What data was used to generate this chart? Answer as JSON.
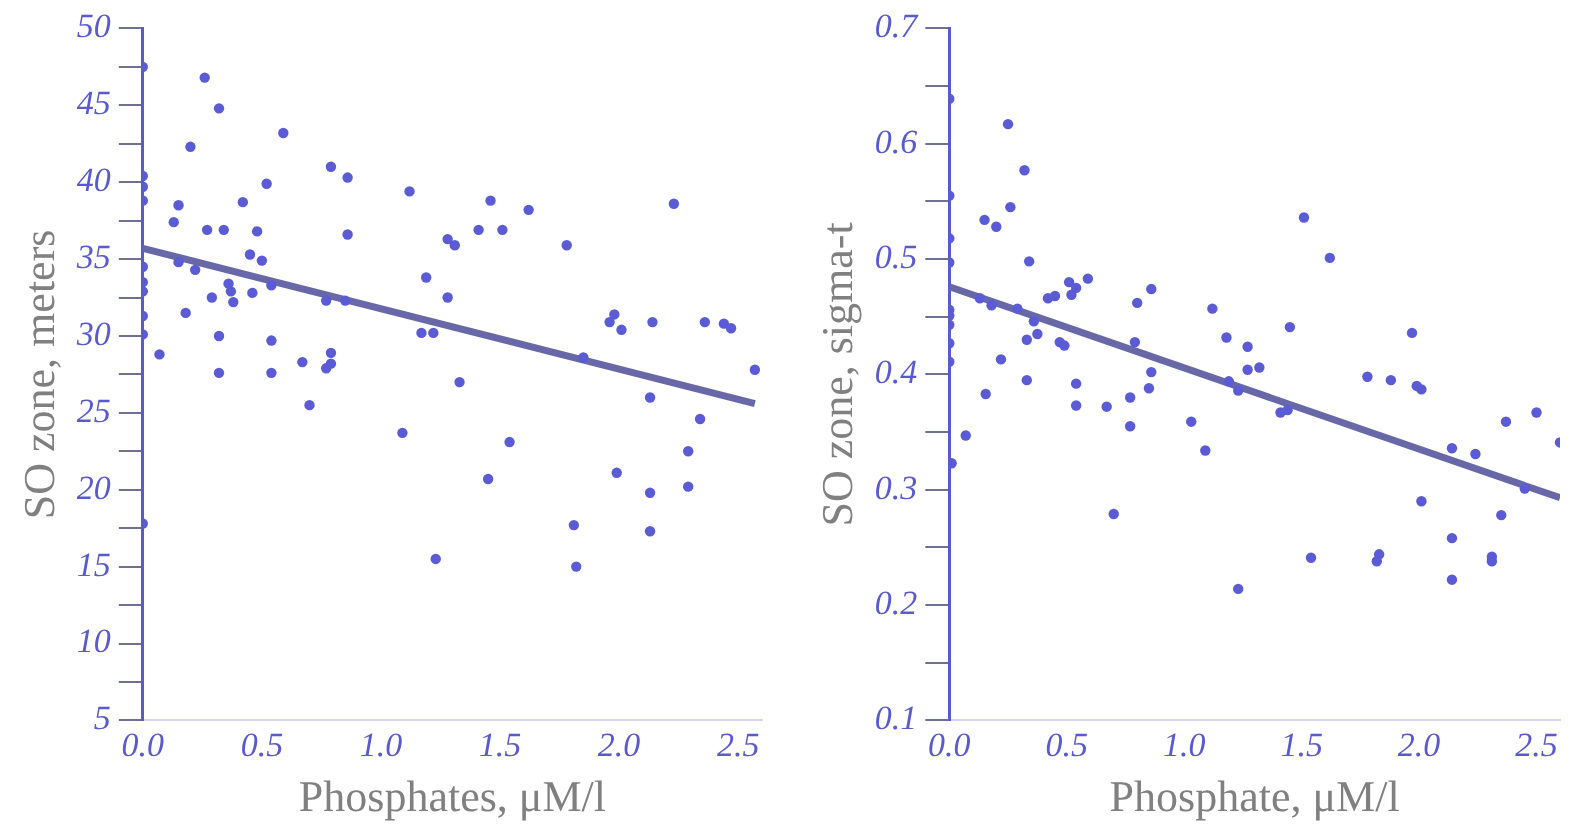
{
  "chart_data": [
    {
      "type": "scatter",
      "xlabel": "Phosphates, μM/l",
      "ylabel": "SO zone, meters",
      "xlim": [
        0,
        2.6
      ],
      "xticks": [
        {
          "value": 0,
          "label": "0.0"
        },
        {
          "value": 0.5,
          "label": "0.5"
        },
        {
          "value": 1,
          "label": "1.0"
        },
        {
          "value": 1.5,
          "label": "1.5"
        },
        {
          "value": 2,
          "label": "2.0"
        },
        {
          "value": 2.5,
          "label": "2.5"
        }
      ],
      "ylim": [
        5,
        50
      ],
      "yticks": [
        5,
        {
          "value": 7.5,
          "label": null
        },
        10,
        {
          "value": 12.5,
          "label": null
        },
        15,
        {
          "value": 17.5,
          "label": null
        },
        20,
        {
          "value": 22.5,
          "label": null
        },
        25,
        {
          "value": 27.5,
          "label": null
        },
        30,
        {
          "value": 32.5,
          "label": null
        },
        35,
        {
          "value": 37.5,
          "label": null
        },
        40,
        {
          "value": 42.5,
          "label": null
        },
        45,
        {
          "value": 47.5,
          "label": null
        },
        50
      ],
      "grid": false,
      "legend": false,
      "series": [
        {
          "type": "scatter",
          "marker": "circle",
          "color": "#5b5bd6",
          "x": [
            0,
            0,
            0,
            0,
            0,
            0,
            0,
            0,
            0,
            0,
            0.26,
            0.32,
            0.2,
            0.59,
            0.15,
            0.13,
            0.27,
            0.34,
            0.42,
            0.52,
            0.48,
            0.79,
            0.86,
            0.86,
            1.12,
            0.07,
            0.15,
            0.22,
            0.18,
            0.29,
            0.36,
            0.37,
            0.38,
            0.32,
            0.32,
            0.46,
            0.45,
            0.5,
            0.54,
            0.54,
            0.54,
            0.67,
            0.7,
            0.77,
            0.79,
            0.79,
            0.77,
            0.85,
            1.09,
            1.19,
            1.17,
            1.22,
            1.23,
            1.28,
            1.28,
            1.46,
            1.62,
            1.41,
            1.51,
            1.31,
            1.78,
            2.23,
            1.33,
            1.54,
            1.45,
            1.85,
            1.98,
            1.96,
            2.01,
            2.14,
            2.36,
            2.44,
            2.47,
            2.57,
            2.13,
            2.34,
            2.29,
            2.29,
            2.13,
            1.99,
            2.13,
            1.81,
            1.82
          ],
          "values": [
            47.5,
            40.4,
            39.7,
            38.8,
            34.5,
            33.5,
            32.9,
            31.3,
            30.1,
            17.8,
            46.8,
            44.8,
            42.3,
            43.2,
            38.5,
            37.4,
            36.9,
            36.9,
            38.7,
            39.9,
            36.8,
            41,
            40.3,
            36.6,
            39.4,
            28.8,
            34.8,
            34.3,
            31.5,
            32.5,
            33.4,
            32.9,
            32.2,
            30,
            27.6,
            32.8,
            35.3,
            34.9,
            33.3,
            29.7,
            27.6,
            28.3,
            25.5,
            32.3,
            28.9,
            28.2,
            27.9,
            32.3,
            23.7,
            33.8,
            30.2,
            30.2,
            15.5,
            36.3,
            32.5,
            38.8,
            38.2,
            36.9,
            36.9,
            35.9,
            35.9,
            38.6,
            27,
            23.1,
            20.7,
            28.6,
            31.4,
            30.9,
            30.4,
            30.9,
            30.9,
            30.8,
            30.5,
            27.8,
            26,
            24.6,
            22.5,
            20.2,
            19.8,
            21.1,
            17.3,
            17.7,
            15
          ]
        },
        {
          "type": "line",
          "marker": "none",
          "color": "#6868a8",
          "x": [
            0,
            2.57
          ],
          "values": [
            35.7,
            25.6
          ]
        }
      ]
    },
    {
      "type": "scatter",
      "xlabel": "Phosphate, μM/l",
      "ylabel": "SO zone, sigma-t",
      "xlim": [
        0,
        2.6
      ],
      "xticks": [
        {
          "value": 0,
          "label": "0.0"
        },
        {
          "value": 0.5,
          "label": "0.5"
        },
        {
          "value": 1,
          "label": "1.0"
        },
        {
          "value": 1.5,
          "label": "1.5"
        },
        {
          "value": 2,
          "label": "2.0"
        },
        {
          "value": 2.5,
          "label": "2.5"
        }
      ],
      "ylim": [
        0.1,
        0.7
      ],
      "yticks": [
        0.1,
        {
          "value": 0.15,
          "label": null
        },
        0.2,
        {
          "value": 0.25,
          "label": null
        },
        0.3,
        {
          "value": 0.35,
          "label": null
        },
        0.4,
        {
          "value": 0.45,
          "label": null
        },
        0.5,
        {
          "value": 0.55,
          "label": null
        },
        0.6,
        {
          "value": 0.65,
          "label": null
        },
        0.7
      ],
      "grid": false,
      "legend": false,
      "series": [
        {
          "type": "scatter",
          "marker": "circle",
          "color": "#5b5bd6",
          "x": [
            0,
            0,
            0,
            0,
            0,
            0,
            0,
            0,
            0,
            0.01,
            0.25,
            0.32,
            0.26,
            0.15,
            0.2,
            0.34,
            0.13,
            0.18,
            0.29,
            0.22,
            0.155,
            0.07,
            0.33,
            0.33,
            0.375,
            0.36,
            0.42,
            0.45,
            0.47,
            0.49,
            0.51,
            0.52,
            0.54,
            0.59,
            0.54,
            0.54,
            0.67,
            0.7,
            0.77,
            0.77,
            0.8,
            0.79,
            0.86,
            0.86,
            0.85,
            1.03,
            1.09,
            1.12,
            1.18,
            1.19,
            1.23,
            1.23,
            1.51,
            1.62,
            1.45,
            1.27,
            1.27,
            1.32,
            1.41,
            1.44,
            1.54,
            1.78,
            1.88,
            1.97,
            1.99,
            2.01,
            1.83,
            1.82,
            2.01,
            2.14,
            2.14,
            2.14,
            2.24,
            2.35,
            2.31,
            2.31,
            2.37,
            2.5,
            2.6,
            2.45
          ],
          "values": [
            0.639,
            0.555,
            0.518,
            0.497,
            0.456,
            0.451,
            0.443,
            0.427,
            0.411,
            0.323,
            0.617,
            0.577,
            0.545,
            0.534,
            0.528,
            0.498,
            0.466,
            0.46,
            0.457,
            0.413,
            0.383,
            0.347,
            0.43,
            0.395,
            0.435,
            0.446,
            0.466,
            0.468,
            0.428,
            0.425,
            0.48,
            0.469,
            0.475,
            0.483,
            0.392,
            0.373,
            0.372,
            0.279,
            0.38,
            0.355,
            0.462,
            0.428,
            0.474,
            0.402,
            0.388,
            0.359,
            0.334,
            0.457,
            0.432,
            0.394,
            0.386,
            0.214,
            0.536,
            0.501,
            0.441,
            0.424,
            0.404,
            0.406,
            0.367,
            0.369,
            0.241,
            0.398,
            0.395,
            0.436,
            0.39,
            0.387,
            0.244,
            0.238,
            0.29,
            0.336,
            0.258,
            0.222,
            0.331,
            0.278,
            0.242,
            0.238,
            0.359,
            0.367,
            0.341,
            0.301
          ]
        },
        {
          "type": "line",
          "marker": "none",
          "color": "#6868a8",
          "x": [
            0,
            2.6
          ],
          "values": [
            0.476,
            0.293
          ]
        }
      ]
    }
  ]
}
